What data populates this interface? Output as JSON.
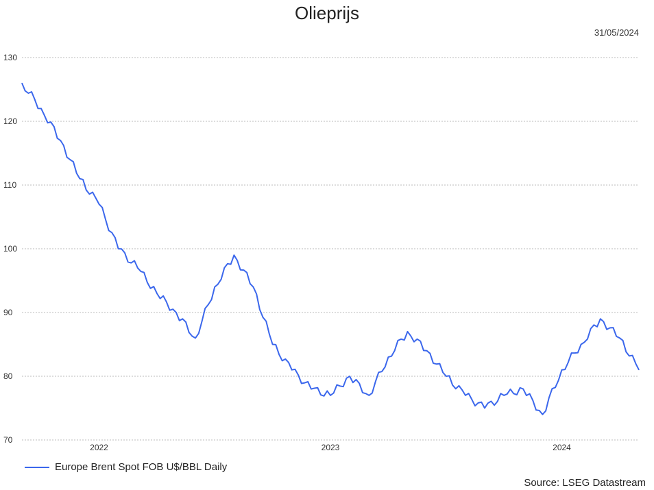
{
  "chart_data": {
    "type": "line",
    "title": "Olieprijs",
    "date_label": "31/05/2024",
    "source": "Source: LSEG Datastream",
    "ylim": [
      70,
      130
    ],
    "y_ticks": [
      70,
      80,
      90,
      100,
      110,
      120,
      130
    ],
    "x_ticks": [
      {
        "label": "2022",
        "x": "2022"
      },
      {
        "label": "2023",
        "x": "2023"
      },
      {
        "label": "2024",
        "x": "2024"
      }
    ],
    "x_range": [
      "2021-09",
      "2024-05"
    ],
    "grid": "horizontal dotted",
    "legend_position": "bottom-left",
    "colors": {
      "series": "#3b67ec",
      "grid": "#bbbbbb"
    },
    "series": [
      {
        "name": "Europe Brent Spot FOB U$/BBL Daily",
        "x": [
          "2021-09",
          "2021-10",
          "2021-11",
          "2021-12",
          "2022-01",
          "2022-02",
          "2022-03",
          "2022-04",
          "2022-05",
          "2022-06",
          "2022-07",
          "2022-08",
          "2022-09",
          "2022-10",
          "2022-11",
          "2022-12",
          "2023-01",
          "2023-02",
          "2023-03",
          "2023-04",
          "2023-05",
          "2023-06",
          "2023-07",
          "2023-08",
          "2023-09",
          "2023-10",
          "2023-11",
          "2023-12",
          "2024-01",
          "2024-02",
          "2024-03",
          "2024-04",
          "2024-05"
        ],
        "y": [
          126,
          122,
          117,
          111,
          107,
          100,
          97,
          93,
          90,
          86,
          94,
          99,
          94,
          85,
          81,
          78,
          77,
          80,
          77,
          83,
          87,
          84,
          80,
          77,
          75,
          77,
          78,
          74,
          81,
          85,
          89,
          86,
          81
        ]
      }
    ]
  }
}
